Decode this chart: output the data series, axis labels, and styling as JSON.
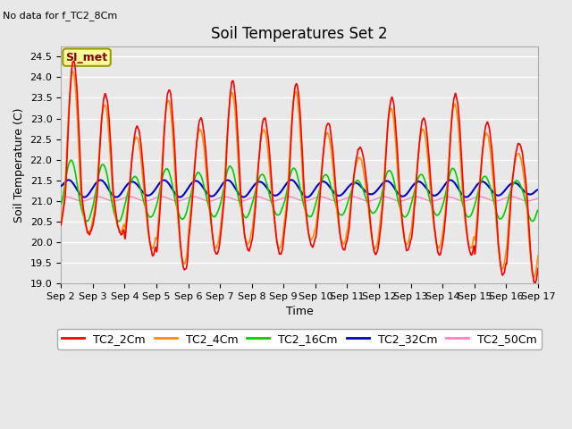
{
  "title": "Soil Temperatures Set 2",
  "subtitle": "No data for f_TC2_8Cm",
  "ylabel": "Soil Temperature (C)",
  "xlabel": "Time",
  "annotation": "SI_met",
  "ylim": [
    19.0,
    24.75
  ],
  "yticks": [
    19.0,
    19.5,
    20.0,
    20.5,
    21.0,
    21.5,
    22.0,
    22.5,
    23.0,
    23.5,
    24.0,
    24.5
  ],
  "xtick_labels": [
    "Sep 2",
    "Sep 3",
    "Sep 4",
    "Sep 5",
    "Sep 6",
    "Sep 7",
    "Sep 8",
    "Sep 9",
    "Sep 10",
    "Sep 11",
    "Sep 12",
    "Sep 13",
    "Sep 14",
    "Sep 15",
    "Sep 16",
    "Sep 17"
  ],
  "colors": {
    "TC2_2Cm": "#FF0000",
    "TC2_4Cm": "#FF8C00",
    "TC2_16Cm": "#00CC00",
    "TC2_32Cm": "#0000CC",
    "TC2_50Cm": "#FF80C0"
  },
  "bg_color": "#E8E8E8",
  "grid_color": "#FFFFFF",
  "title_fontsize": 12,
  "label_fontsize": 9,
  "tick_fontsize": 8
}
